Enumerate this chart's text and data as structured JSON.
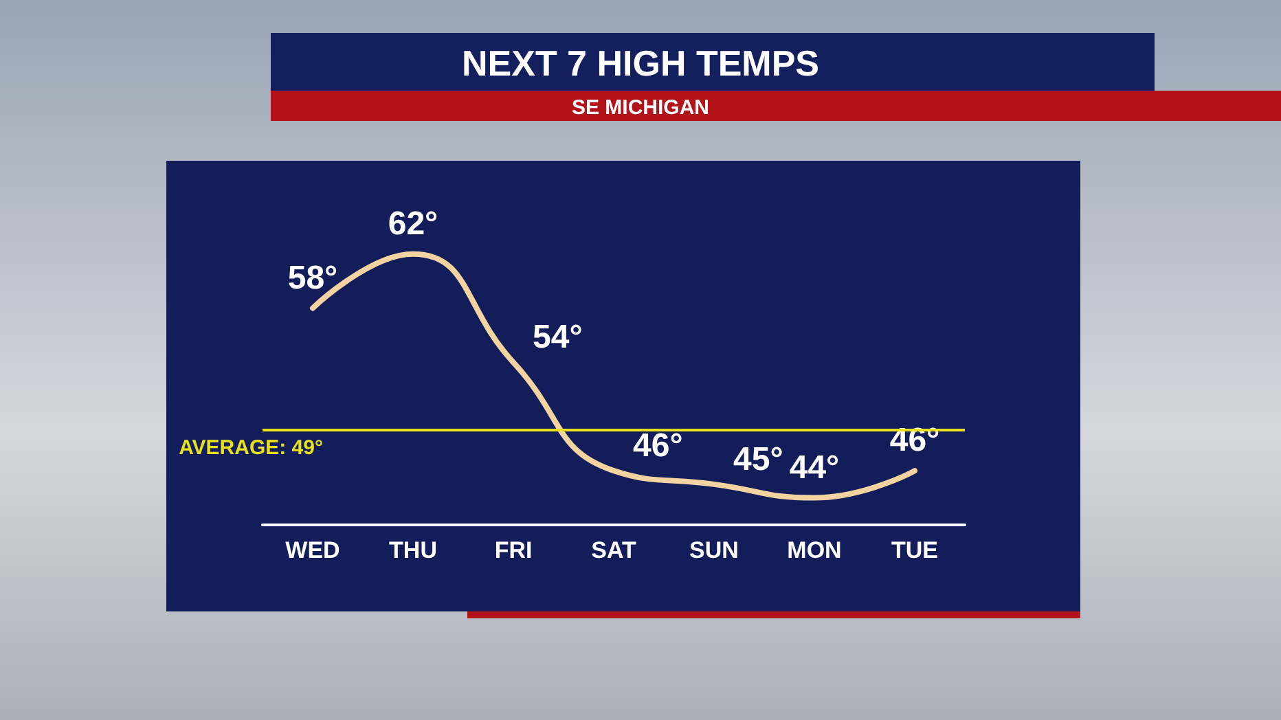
{
  "chart_data": {
    "type": "line",
    "title": "NEXT 7 HIGH TEMPS",
    "subtitle": "SE MICHIGAN",
    "categories": [
      "WED",
      "THU",
      "FRI",
      "SAT",
      "SUN",
      "MON",
      "TUE"
    ],
    "series": [
      {
        "color": "#f3d3a0",
        "values": [
          58,
          62,
          54,
          46,
          45,
          44,
          46
        ],
        "value_labels": [
          "58°",
          "62°",
          "54°",
          "46°",
          "45°",
          "44°",
          "46°"
        ]
      }
    ],
    "ref_lines": [
      {
        "axis": "y",
        "value": 49,
        "label": "AVERAGE: 49°",
        "color": "#e8e21c"
      }
    ]
  }
}
